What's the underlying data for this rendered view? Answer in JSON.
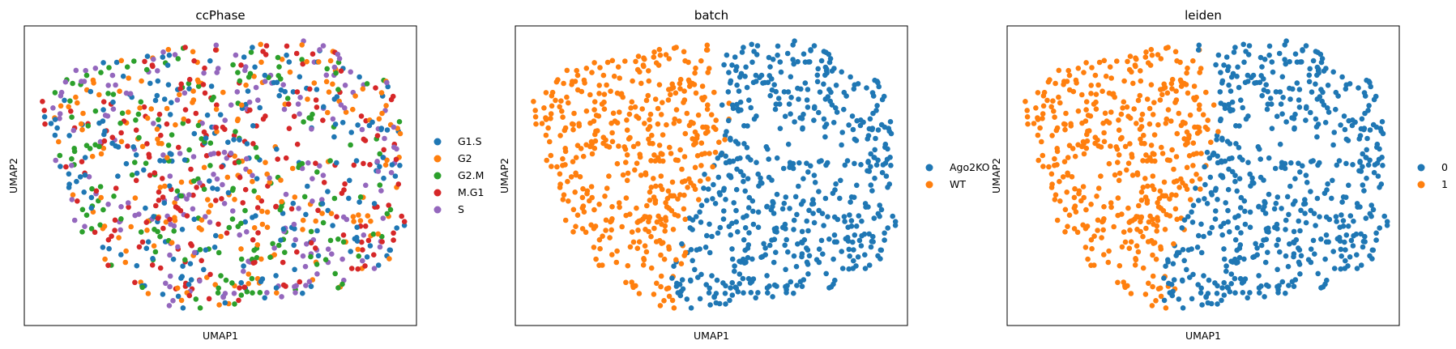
{
  "chart_data": [
    {
      "type": "scatter",
      "title": "ccPhase",
      "xlabel": "UMAP1",
      "ylabel": "UMAP2",
      "grid": false,
      "ticks": false,
      "legend_position": "right",
      "legend": [
        {
          "label": "G1.S",
          "color": "#1f77b4"
        },
        {
          "label": "G2",
          "color": "#ff7f0e"
        },
        {
          "label": "G2.M",
          "color": "#2ca02c"
        },
        {
          "label": "M.G1",
          "color": "#d62728"
        },
        {
          "label": "S",
          "color": "#9467bd"
        }
      ],
      "coloring": "mixed"
    },
    {
      "type": "scatter",
      "title": "batch",
      "xlabel": "UMAP1",
      "ylabel": "UMAP2",
      "grid": false,
      "ticks": false,
      "legend_position": "right",
      "legend": [
        {
          "label": "Ago2KO",
          "color": "#1f77b4"
        },
        {
          "label": "WT",
          "color": "#ff7f0e"
        }
      ],
      "coloring": "split"
    },
    {
      "type": "scatter",
      "title": "leiden",
      "xlabel": "UMAP1",
      "ylabel": "UMAP2",
      "grid": false,
      "ticks": false,
      "legend_position": "right",
      "legend": [
        {
          "label": "0",
          "color": "#1f77b4"
        },
        {
          "label": "1",
          "color": "#ff7f0e"
        }
      ],
      "coloring": "split"
    }
  ]
}
